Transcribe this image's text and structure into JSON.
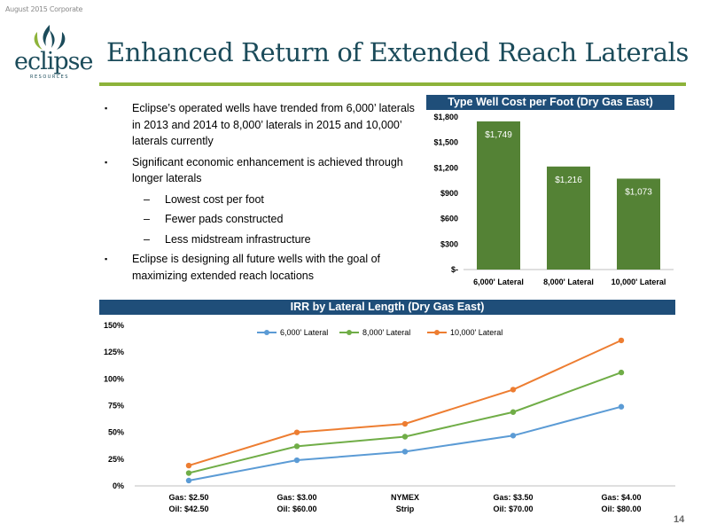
{
  "header": {
    "corner_note": "August 2015 Corporate"
  },
  "logo": {
    "word": "eclipse",
    "sub": "RESOURCES",
    "icon": "flame-leaf-icon",
    "color": "#1b4b5a",
    "accent": "#8db33a"
  },
  "slide": {
    "title": "Enhanced Return of Extended Reach Laterals",
    "page_number": "14"
  },
  "bullets": [
    {
      "text": "Eclipse’s operated wells have trended from 6,000’ laterals in 2013 and 2014 to 8,000’ laterals in 2015 and 10,000’ laterals currently",
      "subs": []
    },
    {
      "text": "Significant economic enhancement is achieved through longer laterals",
      "subs": [
        "Lowest cost per foot",
        "Fewer pads constructed",
        "Less midstream infrastructure"
      ]
    },
    {
      "text": "Eclipse is designing all future wells with the goal of maximizing extended reach locations",
      "subs": []
    }
  ],
  "bullet_marker": "▪",
  "sub_marker": "–",
  "chart_data": [
    {
      "type": "bar",
      "title": "Type Well Cost per Foot (Dry Gas East)",
      "categories": [
        "6,000' Lateral",
        "8,000' Lateral",
        "10,000' Lateral"
      ],
      "values": [
        1749,
        1216,
        1073
      ],
      "value_labels": [
        "$1,749",
        "$1,216",
        "$1,073"
      ],
      "yticks": [
        0,
        300,
        600,
        900,
        1200,
        1500,
        1800
      ],
      "ytick_labels": [
        "$-",
        "$300",
        "$600",
        "$900",
        "$1,200",
        "$1,500",
        "$1,800"
      ],
      "ylim": [
        0,
        1800
      ],
      "bar_color": "#548235",
      "grid": false
    },
    {
      "type": "line",
      "title": "IRR by Lateral Length (Dry Gas East)",
      "x": [
        [
          "Gas: $2.50",
          "Oil: $42.50"
        ],
        [
          "Gas: $3.00",
          "Oil: $60.00"
        ],
        [
          "NYMEX",
          "Strip"
        ],
        [
          "Gas: $3.50",
          "Oil: $70.00"
        ],
        [
          "Gas: $4.00",
          "Oil: $80.00"
        ]
      ],
      "series": [
        {
          "name": "6,000' Lateral",
          "values": [
            5,
            24,
            32,
            47,
            74
          ],
          "color": "#5b9bd5"
        },
        {
          "name": "8,000' Lateral",
          "values": [
            12,
            37,
            46,
            69,
            106
          ],
          "color": "#70ad47"
        },
        {
          "name": "10,000' Lateral",
          "values": [
            19,
            50,
            58,
            90,
            136
          ],
          "color": "#ed7d31"
        }
      ],
      "yticks": [
        0,
        25,
        50,
        75,
        100,
        125,
        150
      ],
      "ytick_labels": [
        "0%",
        "25%",
        "50%",
        "75%",
        "100%",
        "125%",
        "150%"
      ],
      "ylim": [
        0,
        150
      ],
      "legend": "top",
      "grid": false
    }
  ]
}
